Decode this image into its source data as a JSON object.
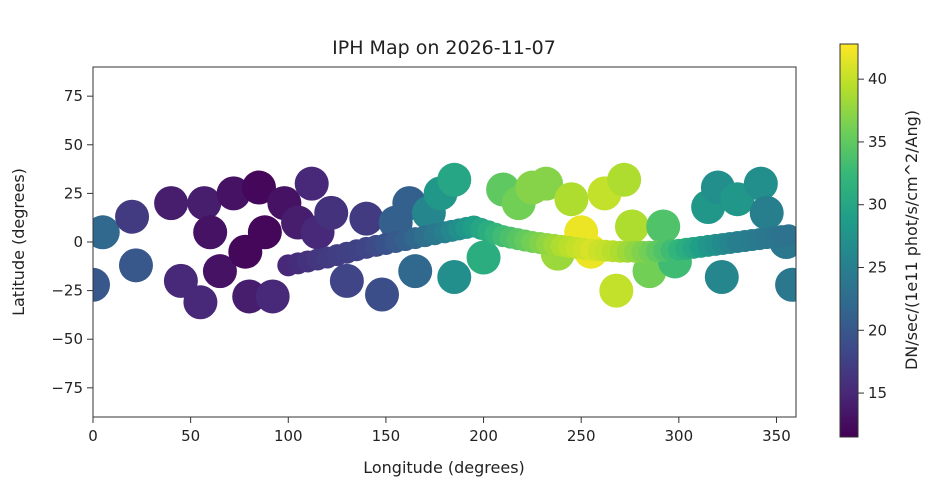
{
  "chart_data": {
    "type": "scatter",
    "title": "IPH Map on 2026-11-07",
    "xlabel": "Longitude (degrees)",
    "ylabel": "Latitude (degrees)",
    "xlim": [
      0,
      360
    ],
    "ylim": [
      -90,
      90
    ],
    "xticks": [
      0,
      50,
      100,
      150,
      200,
      250,
      300,
      350
    ],
    "yticks": [
      75,
      50,
      25,
      0,
      -25,
      -50,
      -75
    ],
    "colorbar": {
      "label": "DN/sec/(1e11 phot/s/cm^2/Ang)",
      "min": 11.5,
      "max": 42.8,
      "ticks": [
        15,
        20,
        25,
        30,
        35,
        40
      ],
      "colormap": [
        "#440154",
        "#482878",
        "#3e4989",
        "#31688e",
        "#26828e",
        "#1f9e89",
        "#35b779",
        "#6ece58",
        "#b5de2b",
        "#fde725"
      ]
    },
    "points": [
      {
        "x": 5,
        "y": 5,
        "v": 22
      },
      {
        "x": 0,
        "y": -22,
        "v": 20
      },
      {
        "x": 20,
        "y": 13,
        "v": 17
      },
      {
        "x": 22,
        "y": -12,
        "v": 20
      },
      {
        "x": 40,
        "y": 20,
        "v": 14
      },
      {
        "x": 45,
        "y": -20,
        "v": 15
      },
      {
        "x": 55,
        "y": -31,
        "v": 15
      },
      {
        "x": 57,
        "y": 20,
        "v": 14
      },
      {
        "x": 60,
        "y": 5,
        "v": 13
      },
      {
        "x": 65,
        "y": -15,
        "v": 13
      },
      {
        "x": 72,
        "y": 25,
        "v": 13
      },
      {
        "x": 78,
        "y": -5,
        "v": 12
      },
      {
        "x": 85,
        "y": 28,
        "v": 12
      },
      {
        "x": 88,
        "y": 5,
        "v": 12
      },
      {
        "x": 80,
        "y": -28,
        "v": 14
      },
      {
        "x": 92,
        "y": -28,
        "v": 15
      },
      {
        "x": 98,
        "y": 20,
        "v": 13
      },
      {
        "x": 105,
        "y": 10,
        "v": 14
      },
      {
        "x": 112,
        "y": 30,
        "v": 15
      },
      {
        "x": 115,
        "y": 5,
        "v": 15
      },
      {
        "x": 122,
        "y": 15,
        "v": 16
      },
      {
        "x": 130,
        "y": -20,
        "v": 18
      },
      {
        "x": 140,
        "y": 12,
        "v": 17
      },
      {
        "x": 148,
        "y": -27,
        "v": 19
      },
      {
        "x": 155,
        "y": 10,
        "v": 21
      },
      {
        "x": 162,
        "y": 20,
        "v": 21
      },
      {
        "x": 165,
        "y": -15,
        "v": 22
      },
      {
        "x": 172,
        "y": 15,
        "v": 26
      },
      {
        "x": 178,
        "y": 25,
        "v": 28
      },
      {
        "x": 185,
        "y": 32,
        "v": 30
      },
      {
        "x": 185,
        "y": -18,
        "v": 27
      },
      {
        "x": 200,
        "y": -8,
        "v": 31
      },
      {
        "x": 210,
        "y": 27,
        "v": 35
      },
      {
        "x": 218,
        "y": 20,
        "v": 36
      },
      {
        "x": 225,
        "y": 28,
        "v": 37
      },
      {
        "x": 232,
        "y": 30,
        "v": 37
      },
      {
        "x": 238,
        "y": -6,
        "v": 38
      },
      {
        "x": 245,
        "y": 22,
        "v": 39
      },
      {
        "x": 250,
        "y": 5,
        "v": 42
      },
      {
        "x": 255,
        "y": -5,
        "v": 42
      },
      {
        "x": 262,
        "y": 25,
        "v": 40
      },
      {
        "x": 268,
        "y": -25,
        "v": 40
      },
      {
        "x": 272,
        "y": 32,
        "v": 39
      },
      {
        "x": 276,
        "y": 8,
        "v": 39
      },
      {
        "x": 285,
        "y": -15,
        "v": 36
      },
      {
        "x": 292,
        "y": 8,
        "v": 34
      },
      {
        "x": 298,
        "y": -10,
        "v": 33
      },
      {
        "x": 315,
        "y": 18,
        "v": 28
      },
      {
        "x": 320,
        "y": 28,
        "v": 27
      },
      {
        "x": 322,
        "y": -18,
        "v": 26
      },
      {
        "x": 330,
        "y": 22,
        "v": 28
      },
      {
        "x": 342,
        "y": 30,
        "v": 27
      },
      {
        "x": 345,
        "y": 15,
        "v": 25
      },
      {
        "x": 355,
        "y": 0,
        "v": 24
      },
      {
        "x": 358,
        "y": -22,
        "v": 24
      }
    ],
    "track": [
      {
        "x": 100,
        "y": -12,
        "v": 15
      },
      {
        "x": 120,
        "y": -8,
        "v": 17
      },
      {
        "x": 140,
        "y": -3,
        "v": 18
      },
      {
        "x": 160,
        "y": 1,
        "v": 21
      },
      {
        "x": 180,
        "y": 5,
        "v": 25
      },
      {
        "x": 195,
        "y": 8,
        "v": 29
      },
      {
        "x": 210,
        "y": 3,
        "v": 33
      },
      {
        "x": 225,
        "y": 0,
        "v": 36
      },
      {
        "x": 240,
        "y": -2,
        "v": 39
      },
      {
        "x": 255,
        "y": -4,
        "v": 41
      },
      {
        "x": 270,
        "y": -5,
        "v": 39
      },
      {
        "x": 285,
        "y": -5,
        "v": 36
      },
      {
        "x": 300,
        "y": -4,
        "v": 32
      },
      {
        "x": 315,
        "y": -2,
        "v": 28
      },
      {
        "x": 330,
        "y": 0,
        "v": 25
      },
      {
        "x": 345,
        "y": 2,
        "v": 24
      },
      {
        "x": 360,
        "y": 4,
        "v": 23
      }
    ]
  }
}
